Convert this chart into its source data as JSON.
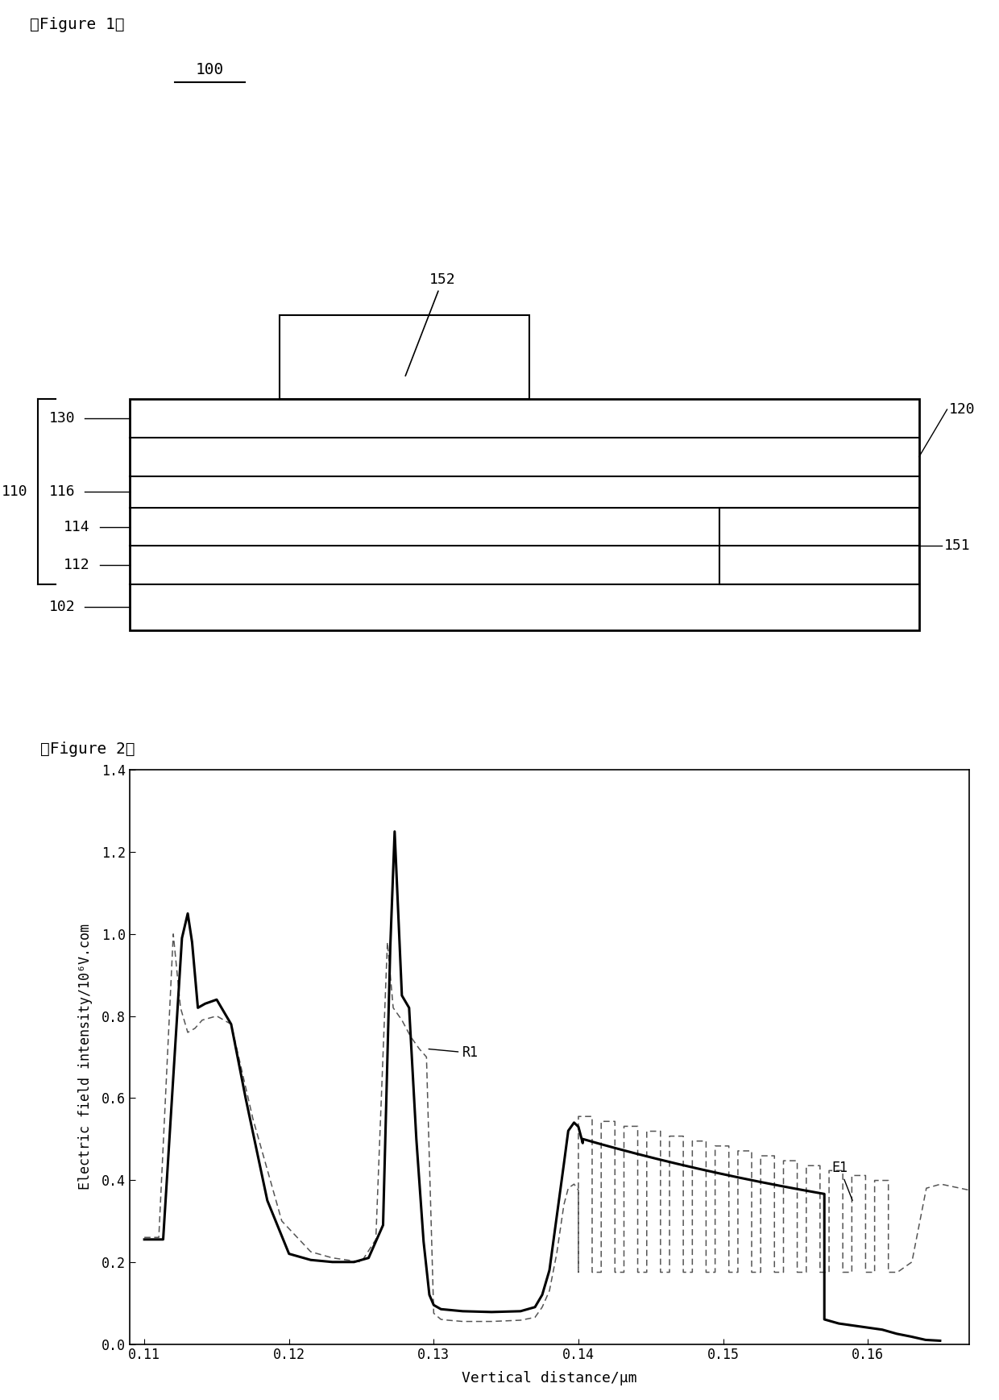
{
  "fig1_title": "【Figure 1】",
  "fig2_title": "【Figure 2】",
  "label_100": "100",
  "label_102": "102",
  "label_110": "110",
  "label_112": "112",
  "label_114": "114",
  "label_116": "116",
  "label_120": "120",
  "label_130": "130",
  "label_151": "151",
  "label_152": "152",
  "ylabel_fig2": "Electric field intensity/10⁶V.com",
  "xlabel_fig2": "Vertical distance/μm",
  "label_R1": "R1",
  "label_E1": "E1",
  "ylim_fig2": [
    0,
    1.4
  ],
  "xlim_fig2": [
    0.109,
    0.167
  ],
  "yticks_fig2": [
    0,
    0.2,
    0.4,
    0.6,
    0.8,
    1.0,
    1.2,
    1.4
  ],
  "xticks_fig2": [
    0.11,
    0.12,
    0.13,
    0.14,
    0.15,
    0.16
  ],
  "bg_color": "#ffffff",
  "line_color_solid": "#000000",
  "line_color_dashed": "#555555"
}
